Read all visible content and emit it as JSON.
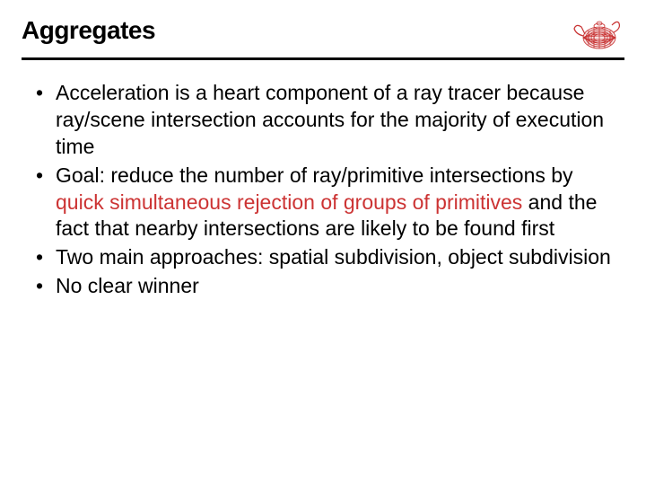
{
  "title": "Aggregates",
  "logo": {
    "primary_color": "#c83232",
    "wireframe_color": "#c83232"
  },
  "bullets": [
    {
      "segments": [
        {
          "text": "Acceleration is a heart component of a ray tracer because ray/scene intersection accounts for the majority of execution time",
          "highlight": false
        }
      ]
    },
    {
      "segments": [
        {
          "text": "Goal: reduce the number of ray/primitive intersections by ",
          "highlight": false
        },
        {
          "text": "quick simultaneous rejection of groups of primitives",
          "highlight": true
        },
        {
          "text": " and the fact that nearby intersections are likely to be found first",
          "highlight": false
        }
      ]
    },
    {
      "segments": [
        {
          "text": "Two main approaches: spatial subdivision, object subdivision",
          "highlight": false
        }
      ]
    },
    {
      "segments": [
        {
          "text": "No clear winner",
          "highlight": false
        }
      ]
    }
  ],
  "styles": {
    "title_fontsize": 28,
    "bullet_fontsize": 23,
    "highlight_color": "#cc3333",
    "text_color": "#000000",
    "rule_color": "#000000",
    "rule_width": 3,
    "background_color": "#ffffff"
  }
}
